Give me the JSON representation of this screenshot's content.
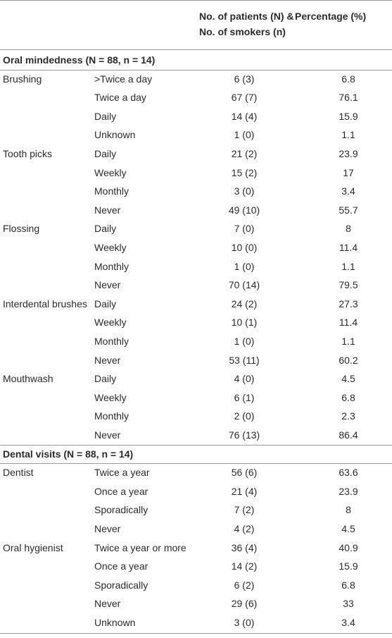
{
  "table": {
    "header": [
      "No. of patients (N) &",
      "No. of smokers (n)",
      "Percentage (%)"
    ],
    "sections": [
      {
        "title": "Oral mindedness (N = 88, n = 14)",
        "groups": [
          {
            "label": "Brushing",
            "rows": [
              [
                ">Twice a day",
                "6 (3)",
                6.8
              ],
              [
                "Twice a day",
                "67 (7)",
                76.1
              ],
              [
                "Daily",
                "14 (4)",
                15.9
              ],
              [
                "Unknown",
                "1 (0)",
                1.1
              ]
            ]
          },
          {
            "label": "Tooth picks",
            "rows": [
              [
                "Daily",
                "21 (2)",
                23.9
              ],
              [
                "Weekly",
                "15 (2)",
                17
              ],
              [
                "Monthly",
                "3 (0)",
                3.4
              ],
              [
                "Never",
                "49 (10)",
                55.7
              ]
            ]
          },
          {
            "label": "Flossing",
            "rows": [
              [
                "Daily",
                "7 (0)",
                8
              ],
              [
                "Weekly",
                "10 (0)",
                11.4
              ],
              [
                "Monthly",
                "1 (0)",
                1.1
              ],
              [
                "Never",
                "70 (14)",
                79.5
              ]
            ]
          },
          {
            "label": "Interdental brushes",
            "rows": [
              [
                "Daily",
                "24 (2)",
                27.3
              ],
              [
                "Weekly",
                "10 (1)",
                11.4
              ],
              [
                "Monthly",
                "1 (0)",
                1.1
              ],
              [
                "Never",
                "53 (11)",
                60.2
              ]
            ]
          },
          {
            "label": "Mouthwash",
            "rows": [
              [
                "Daily",
                "4 (0)",
                4.5
              ],
              [
                "Weekly",
                "6 (1)",
                6.8
              ],
              [
                "Monthly",
                "2 (0)",
                2.3
              ],
              [
                "Never",
                "76 (13)",
                86.4
              ]
            ]
          }
        ]
      },
      {
        "title": "Dental visits (N = 88, n = 14)",
        "groups": [
          {
            "label": "Dentist",
            "rows": [
              [
                "Twice a year",
                "56 (6)",
                63.6
              ],
              [
                "Once a year",
                "21 (4)",
                23.9
              ],
              [
                "Sporadically",
                "7 (2)",
                8
              ],
              [
                "Never",
                "4 (2)",
                4.5
              ]
            ]
          },
          {
            "label": "Oral hygienist",
            "rows": [
              [
                "Twice a year or more",
                "36 (4)",
                40.9
              ],
              [
                "Once a year",
                "14 (2)",
                15.9
              ],
              [
                "Sporadically",
                "6 (2)",
                6.8
              ],
              [
                "Never",
                "29 (6)",
                33
              ],
              [
                "Unknown",
                "3 (0)",
                3.4
              ]
            ]
          }
        ]
      }
    ]
  }
}
